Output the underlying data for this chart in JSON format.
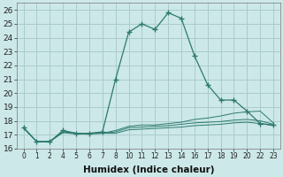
{
  "xlabel": "Humidex (Indice chaleur)",
  "bg_color": "#cce8e8",
  "grid_color": "#aacccc",
  "line_color": "#2d7a6e",
  "hours": [
    0,
    1,
    2,
    4,
    5,
    6,
    7,
    8,
    10,
    11,
    12,
    13,
    14,
    16,
    17,
    18,
    19,
    20,
    22,
    23
  ],
  "xtick_labels": [
    "0",
    "1",
    "2",
    "4",
    "5",
    "6",
    "7",
    "8",
    "10",
    "11",
    "12",
    "13",
    "14",
    "16",
    "17",
    "18",
    "19",
    "20",
    "22",
    "23"
  ],
  "ylim": [
    16,
    26.5
  ],
  "yticks": [
    16,
    17,
    18,
    19,
    20,
    21,
    22,
    23,
    24,
    25,
    26
  ],
  "series": [
    [
      17.5,
      16.5,
      16.5,
      17.3,
      17.1,
      17.1,
      17.2,
      21.0,
      24.4,
      25.0,
      24.6,
      25.8,
      25.4,
      22.7,
      20.6,
      19.5,
      19.5,
      18.7,
      17.8,
      17.7
    ],
    [
      17.5,
      16.5,
      16.5,
      17.2,
      17.1,
      17.1,
      17.1,
      17.3,
      17.6,
      17.7,
      17.7,
      17.8,
      17.9,
      18.1,
      18.2,
      18.35,
      18.55,
      18.65,
      18.7,
      17.85
    ],
    [
      17.5,
      16.5,
      16.5,
      17.2,
      17.1,
      17.1,
      17.1,
      17.2,
      17.5,
      17.55,
      17.6,
      17.65,
      17.75,
      17.85,
      17.9,
      17.95,
      18.05,
      18.1,
      18.0,
      17.75
    ],
    [
      17.5,
      16.5,
      16.5,
      17.15,
      17.05,
      17.05,
      17.1,
      17.1,
      17.35,
      17.4,
      17.45,
      17.5,
      17.55,
      17.65,
      17.7,
      17.75,
      17.85,
      17.9,
      17.8,
      17.65
    ]
  ]
}
